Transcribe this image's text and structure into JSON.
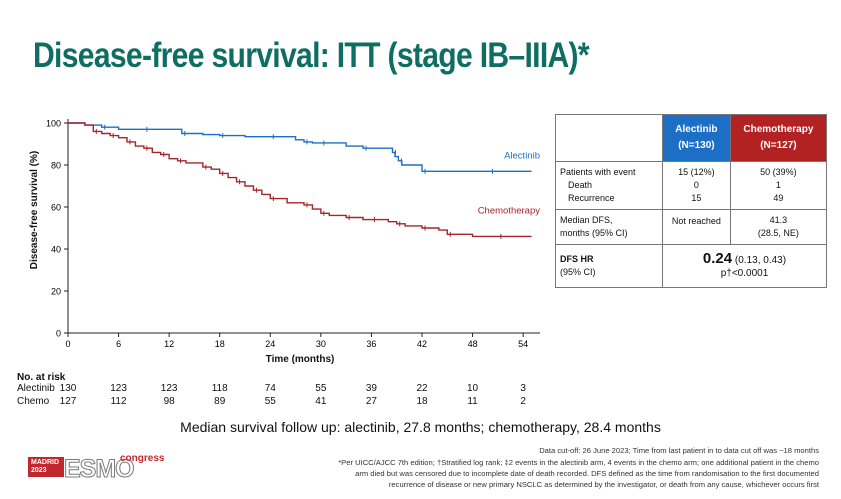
{
  "title": "Disease-free survival: ITT (stage IB–IIIA)*",
  "chart_data": {
    "type": "line",
    "title": "",
    "xlabel": "Time (months)",
    "ylabel": "Disease-free survival (%)",
    "xlim": [
      0,
      56
    ],
    "ylim": [
      0,
      100
    ],
    "xticks": [
      0,
      6,
      12,
      18,
      24,
      30,
      36,
      42,
      48,
      54
    ],
    "yticks": [
      0,
      20,
      40,
      60,
      80,
      100
    ],
    "series": [
      {
        "name": "Alectinib",
        "color": "#1d6fc6",
        "x": [
          0,
          2,
          4,
          6,
          9,
          12,
          13.5,
          16,
          18,
          21,
          24,
          27,
          28,
          29,
          30,
          33,
          35,
          36,
          38.5,
          38.8,
          39.2,
          39.6,
          42,
          45,
          50,
          55
        ],
        "y": [
          100,
          99,
          98,
          97,
          97,
          97,
          95,
          94.5,
          94,
          93.5,
          93.5,
          92,
          91,
          90.5,
          90.5,
          89,
          88,
          88,
          86,
          84,
          82,
          80,
          77,
          77,
          77,
          77
        ]
      },
      {
        "name": "Chemotherapy",
        "color": "#a3262b",
        "x": [
          0,
          2,
          3,
          4,
          5,
          6,
          7,
          8,
          9,
          10,
          11,
          12,
          13,
          14,
          16,
          17,
          18,
          19,
          20,
          21,
          22,
          23,
          24,
          26,
          28,
          29,
          30,
          31,
          33,
          35,
          36,
          38,
          39,
          40,
          42,
          44,
          45,
          48,
          51,
          55
        ],
        "y": [
          100,
          99,
          96,
          95,
          94,
          93,
          91,
          89,
          88,
          86,
          85,
          83,
          82,
          81,
          79,
          78,
          76,
          74,
          72,
          70,
          68,
          66,
          64,
          62,
          61,
          59,
          57,
          56,
          55,
          54,
          54,
          53,
          52,
          51,
          50,
          49,
          47,
          46,
          46,
          46
        ]
      }
    ],
    "series_labels": [
      "Alectinib",
      "Chemotherapy"
    ],
    "grid": false
  },
  "risk": {
    "title": "No. at risk",
    "rows": [
      {
        "name": "Alectinib",
        "values": [
          "130",
          "123",
          "123",
          "118",
          "74",
          "55",
          "39",
          "22",
          "10",
          "3"
        ]
      },
      {
        "name": "Chemo",
        "values": [
          "127",
          "112",
          "98",
          "89",
          "55",
          "41",
          "27",
          "18",
          "11",
          "2"
        ]
      }
    ]
  },
  "table": {
    "col_alec_name": "Alectinib",
    "col_alec_n": "(N=130)",
    "col_chemo_name": "Chemotherapy",
    "col_chemo_n": "(N=127)",
    "r1_label": "Patients with event",
    "r1_a": "15 (12%)",
    "r1_c": "50 (39%)",
    "r2_label": "Death",
    "r2_a": "0",
    "r2_c": "1",
    "r3_label": "Recurrence",
    "r3_a": "15",
    "r3_c": "49",
    "r4_label1": "Median DFS,",
    "r4_label2": "months (95% CI)",
    "r4_a": "Not reached",
    "r4_c1": "41.3",
    "r4_c2": "(28.5, NE)",
    "r5_label1": "DFS HR",
    "r5_label2": "(95% CI)",
    "hr_value": "0.24",
    "hr_ci": "(0.13, 0.43)",
    "p_value": "p†<0.0001"
  },
  "median_text": "Median survival follow up: alectinib, 27.8 months; chemotherapy, 28.4 months",
  "footnotes": [
    "Data cut-off: 26 June 2023; Time from last patient in to data cut off was ~18 months",
    "*Per UICC/AJCC 7th edition; †Stratified log rank; ‡2 events in the alectinib arm, 4 events in the chemo arm; one additional patient in the chemo",
    "arm died but was censored due to incomplete date of death recorded. DFS defined as the time from randomisation to the first documented",
    "recurrence of disease or new primary NSCLC as determined by the investigator, or death from any cause, whichever occurs first"
  ],
  "logo": {
    "city": "MADRID",
    "year": "2023",
    "brand": "ESMO",
    "suffix": "congress",
    "color": "#c0282d"
  }
}
